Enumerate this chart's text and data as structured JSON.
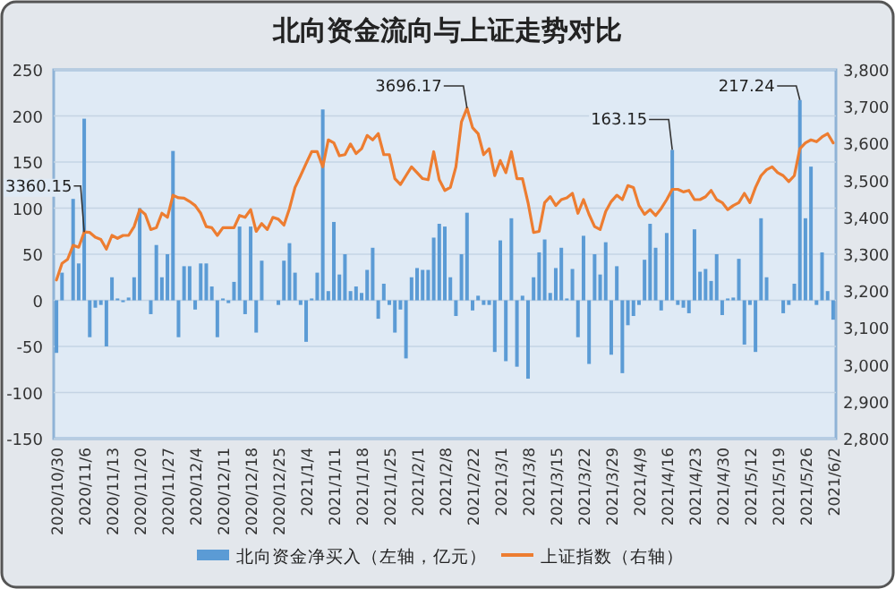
{
  "chart_data": {
    "type": "bar",
    "title": "北向资金流向与上证走势对比",
    "categories": [
      "2020/10/30",
      null,
      null,
      null,
      null,
      "2020/11/6",
      null,
      null,
      null,
      null,
      "2020/11/13",
      null,
      null,
      null,
      null,
      "2020/11/20",
      null,
      null,
      null,
      null,
      "2020/11/27",
      null,
      null,
      null,
      null,
      "2020/12/4",
      null,
      null,
      null,
      null,
      "2020/12/11",
      null,
      null,
      null,
      null,
      "2020/12/18",
      null,
      null,
      null,
      null,
      "2020/12/25",
      null,
      null,
      null,
      null,
      "2021/1/4",
      null,
      null,
      null,
      null,
      "2021/1/11",
      null,
      null,
      null,
      null,
      "2021/1/18",
      null,
      null,
      null,
      null,
      "2021/1/25",
      null,
      null,
      null,
      null,
      "2021/2/1",
      null,
      null,
      null,
      null,
      "2021/2/8",
      null,
      null,
      null,
      null,
      "2021/2/22",
      null,
      null,
      null,
      null,
      "2021/3/1",
      null,
      null,
      null,
      null,
      "2021/3/8",
      null,
      null,
      null,
      null,
      "2021/3/15",
      null,
      null,
      null,
      null,
      "2021/3/22",
      null,
      null,
      null,
      null,
      "2021/3/29",
      null,
      null,
      null,
      null,
      "2021/4/9",
      null,
      null,
      null,
      null,
      "2021/4/16",
      null,
      null,
      null,
      null,
      "2021/4/23",
      null,
      null,
      null,
      null,
      "2021/4/30",
      null,
      null,
      null,
      null,
      "2021/5/12",
      null,
      null,
      null,
      null,
      "2021/5/19",
      null,
      null,
      null,
      null,
      "2021/5/26",
      null,
      null,
      null,
      null,
      "2021/6/2"
    ],
    "series": [
      {
        "name": "北向资金净买入（左轴，亿元）",
        "color": "#5b9bd5",
        "values": [
          -57,
          30,
          0,
          110,
          40,
          197,
          -40,
          -8,
          -5,
          -50,
          25,
          2,
          -2,
          3,
          25,
          100,
          0,
          -15,
          60,
          25,
          50,
          162,
          -40,
          37,
          37,
          -10,
          40,
          40,
          15,
          -40,
          2,
          -3,
          20,
          80,
          -15,
          80,
          -35,
          43,
          0,
          0,
          -5,
          43,
          62,
          30,
          -5,
          -45,
          2,
          30,
          207,
          10,
          85,
          28,
          50,
          10,
          15,
          8,
          33,
          57,
          -20,
          18,
          -5,
          -35,
          -10,
          -63,
          25,
          35,
          33,
          33,
          68,
          83,
          80,
          25,
          -17,
          50,
          95,
          -11,
          5,
          -5,
          -5,
          -56,
          65,
          -66,
          89,
          -72,
          5,
          -85,
          25,
          52,
          66,
          8,
          35,
          57,
          2,
          34,
          -40,
          70,
          -69,
          50,
          28,
          63,
          -59,
          37,
          -79,
          -27,
          -17,
          -5,
          44,
          83,
          57,
          -11,
          73,
          163.15,
          -5,
          -8,
          -14,
          77,
          31,
          34,
          21,
          50,
          -16,
          2,
          3,
          45,
          -48,
          -5,
          -56,
          89,
          25,
          0,
          0,
          -14,
          -5,
          18,
          217.24,
          89,
          145,
          -5,
          52,
          10,
          -21
        ],
        "value_labels": [
          null,
          null,
          null,
          null,
          null,
          null,
          null,
          null,
          null,
          null,
          null,
          null,
          null,
          null,
          null,
          null,
          null,
          null,
          null,
          null,
          null,
          null,
          null,
          null,
          null,
          null,
          null,
          null,
          null,
          null,
          null,
          null,
          null,
          null,
          null,
          null,
          null,
          null,
          null,
          null,
          null,
          null,
          null,
          null,
          null,
          null,
          null,
          null,
          null,
          null,
          null,
          null,
          null,
          null,
          null,
          null,
          null,
          null,
          null,
          null,
          null,
          null,
          null,
          null,
          null,
          null,
          null,
          null,
          null,
          null,
          null,
          null,
          null,
          null,
          null,
          null,
          null,
          null,
          null,
          null,
          null,
          null,
          null,
          null,
          null,
          null,
          null,
          null,
          null,
          null,
          null,
          null,
          null,
          null,
          null,
          null,
          null,
          null,
          null,
          null,
          null,
          null,
          null,
          null,
          null,
          null,
          null,
          null,
          null,
          null,
          null,
          "163.15",
          null,
          null,
          null,
          null,
          null,
          null,
          null,
          null,
          null,
          null,
          null,
          null,
          null,
          null,
          null,
          null,
          null,
          null,
          null,
          null,
          null,
          null,
          "217.24",
          null,
          null,
          null,
          null,
          null,
          null
        ]
      },
      {
        "name": "上证指数（右轴）",
        "type": "line",
        "axis": "y2",
        "color": "#ed7d31",
        "values": [
          3230,
          3275,
          3286,
          3324,
          3319,
          3360.15,
          3359,
          3346,
          3340,
          3314,
          3351,
          3343,
          3351,
          3351,
          3375,
          3421,
          3408,
          3367,
          3372,
          3411,
          3400,
          3460,
          3453,
          3452,
          3443,
          3432,
          3411,
          3375,
          3372,
          3351,
          3372,
          3372,
          3372,
          3405,
          3400,
          3421,
          3362,
          3383,
          3367,
          3400,
          3395,
          3379,
          3424,
          3481,
          3513,
          3546,
          3578,
          3578,
          3537,
          3610,
          3602,
          3567,
          3570,
          3599,
          3573,
          3586,
          3622,
          3610,
          3627,
          3570,
          3570,
          3505,
          3489,
          3513,
          3537,
          3521,
          3505,
          3502,
          3578,
          3502,
          3473,
          3481,
          3537,
          3659,
          3696.17,
          3643,
          3627,
          3570,
          3586,
          3513,
          3554,
          3521,
          3578,
          3505,
          3505,
          3440,
          3359,
          3362,
          3440,
          3456,
          3432,
          3448,
          3453,
          3465,
          3411,
          3448,
          3408,
          3375,
          3367,
          3416,
          3443,
          3460,
          3448,
          3486,
          3481,
          3432,
          3408,
          3421,
          3405,
          3424,
          3448,
          3476,
          3476,
          3469,
          3473,
          3448,
          3448,
          3456,
          3473,
          3448,
          3440,
          3421,
          3432,
          3440,
          3465,
          3440,
          3481,
          3513,
          3529,
          3537,
          3521,
          3513,
          3497,
          3513,
          3586,
          3602,
          3610,
          3605,
          3618,
          3627,
          3602
        ],
        "value_labels": [
          null,
          null,
          null,
          null,
          null,
          "3360.15",
          null,
          null,
          null,
          null,
          null,
          null,
          null,
          null,
          null,
          null,
          null,
          null,
          null,
          null,
          null,
          null,
          null,
          null,
          null,
          null,
          null,
          null,
          null,
          null,
          null,
          null,
          null,
          null,
          null,
          null,
          null,
          null,
          null,
          null,
          null,
          null,
          null,
          null,
          null,
          null,
          null,
          null,
          null,
          null,
          null,
          null,
          null,
          null,
          null,
          null,
          null,
          null,
          null,
          null,
          null,
          null,
          null,
          null,
          null,
          null,
          null,
          null,
          null,
          null,
          null,
          null,
          null,
          null,
          "3696.17",
          null,
          null,
          null,
          null,
          null,
          null,
          null,
          null,
          null,
          null,
          null,
          null,
          null,
          null,
          null,
          null,
          null,
          null,
          null,
          null,
          null,
          null,
          null,
          null,
          null,
          null,
          null,
          null,
          null,
          null,
          null,
          null,
          null,
          null,
          null,
          null,
          null,
          null,
          null,
          null,
          null,
          null,
          null,
          null,
          null,
          null,
          null,
          null,
          null,
          null,
          null,
          null,
          null,
          null,
          null,
          null,
          null,
          null,
          null,
          null,
          null,
          null,
          null,
          null,
          null,
          null
        ]
      }
    ],
    "ylim": [
      -150,
      250
    ],
    "yticks": [
      -150,
      -100,
      -50,
      0,
      50,
      100,
      150,
      200,
      250
    ],
    "y2lim": [
      2800,
      3800
    ],
    "y2ticks": [
      {
        "value": 2800,
        "label": "2,800"
      },
      {
        "value": 2900,
        "label": "2,900"
      },
      {
        "value": 3000,
        "label": "3,000"
      },
      {
        "value": 3100,
        "label": "3,100"
      },
      {
        "value": 3200,
        "label": "3,200"
      },
      {
        "value": 3300,
        "label": "3,300"
      },
      {
        "value": 3400,
        "label": "3,400"
      },
      {
        "value": 3500,
        "label": "3,500"
      },
      {
        "value": 3600,
        "label": "3,600"
      },
      {
        "value": 3700,
        "label": "3,700"
      },
      {
        "value": 3800,
        "label": "3,800"
      }
    ],
    "grid": "y",
    "legend": "bottom"
  }
}
